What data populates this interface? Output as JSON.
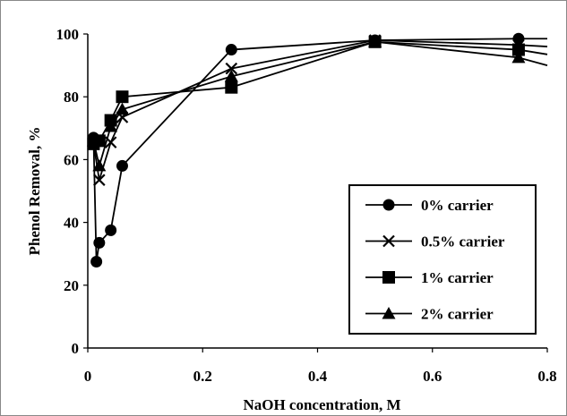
{
  "chart_data": {
    "type": "line",
    "title": "",
    "xlabel": "NaOH concentration, M",
    "ylabel": "Phenol Removal, %",
    "xlim": [
      0,
      0.8
    ],
    "ylim": [
      0,
      100
    ],
    "xticks": [
      "0",
      "0.2",
      "0.4",
      "0.6",
      "0.8"
    ],
    "yticks": [
      "0",
      "20",
      "40",
      "60",
      "80",
      "100"
    ],
    "grid": false,
    "legend_position": "lower-right",
    "series": [
      {
        "name": "0% carrier",
        "marker": "circle",
        "x": [
          0.01,
          0.015,
          0.02,
          0.04,
          0.06,
          0.25,
          0.5,
          0.75,
          0.8
        ],
        "y": [
          67,
          27.5,
          33.5,
          37.5,
          58,
          95,
          98,
          98.5,
          98.5
        ]
      },
      {
        "name": "0.5% carrier",
        "marker": "x",
        "x": [
          0.01,
          0.02,
          0.04,
          0.06,
          0.25,
          0.5,
          0.75,
          0.8
        ],
        "y": [
          65,
          53.5,
          65.5,
          73.5,
          89,
          98,
          96.5,
          96
        ]
      },
      {
        "name": "1% carrier",
        "marker": "square",
        "x": [
          0.01,
          0.02,
          0.04,
          0.06,
          0.25,
          0.5,
          0.75,
          0.8
        ],
        "y": [
          65,
          66,
          72.5,
          80,
          83,
          97.5,
          95,
          93.5
        ]
      },
      {
        "name": "2% carrier",
        "marker": "triangle",
        "x": [
          0.01,
          0.02,
          0.04,
          0.06,
          0.25,
          0.5,
          0.75,
          0.8
        ],
        "y": [
          66,
          58,
          70.5,
          76,
          86.5,
          97.5,
          92.5,
          90
        ]
      }
    ]
  }
}
